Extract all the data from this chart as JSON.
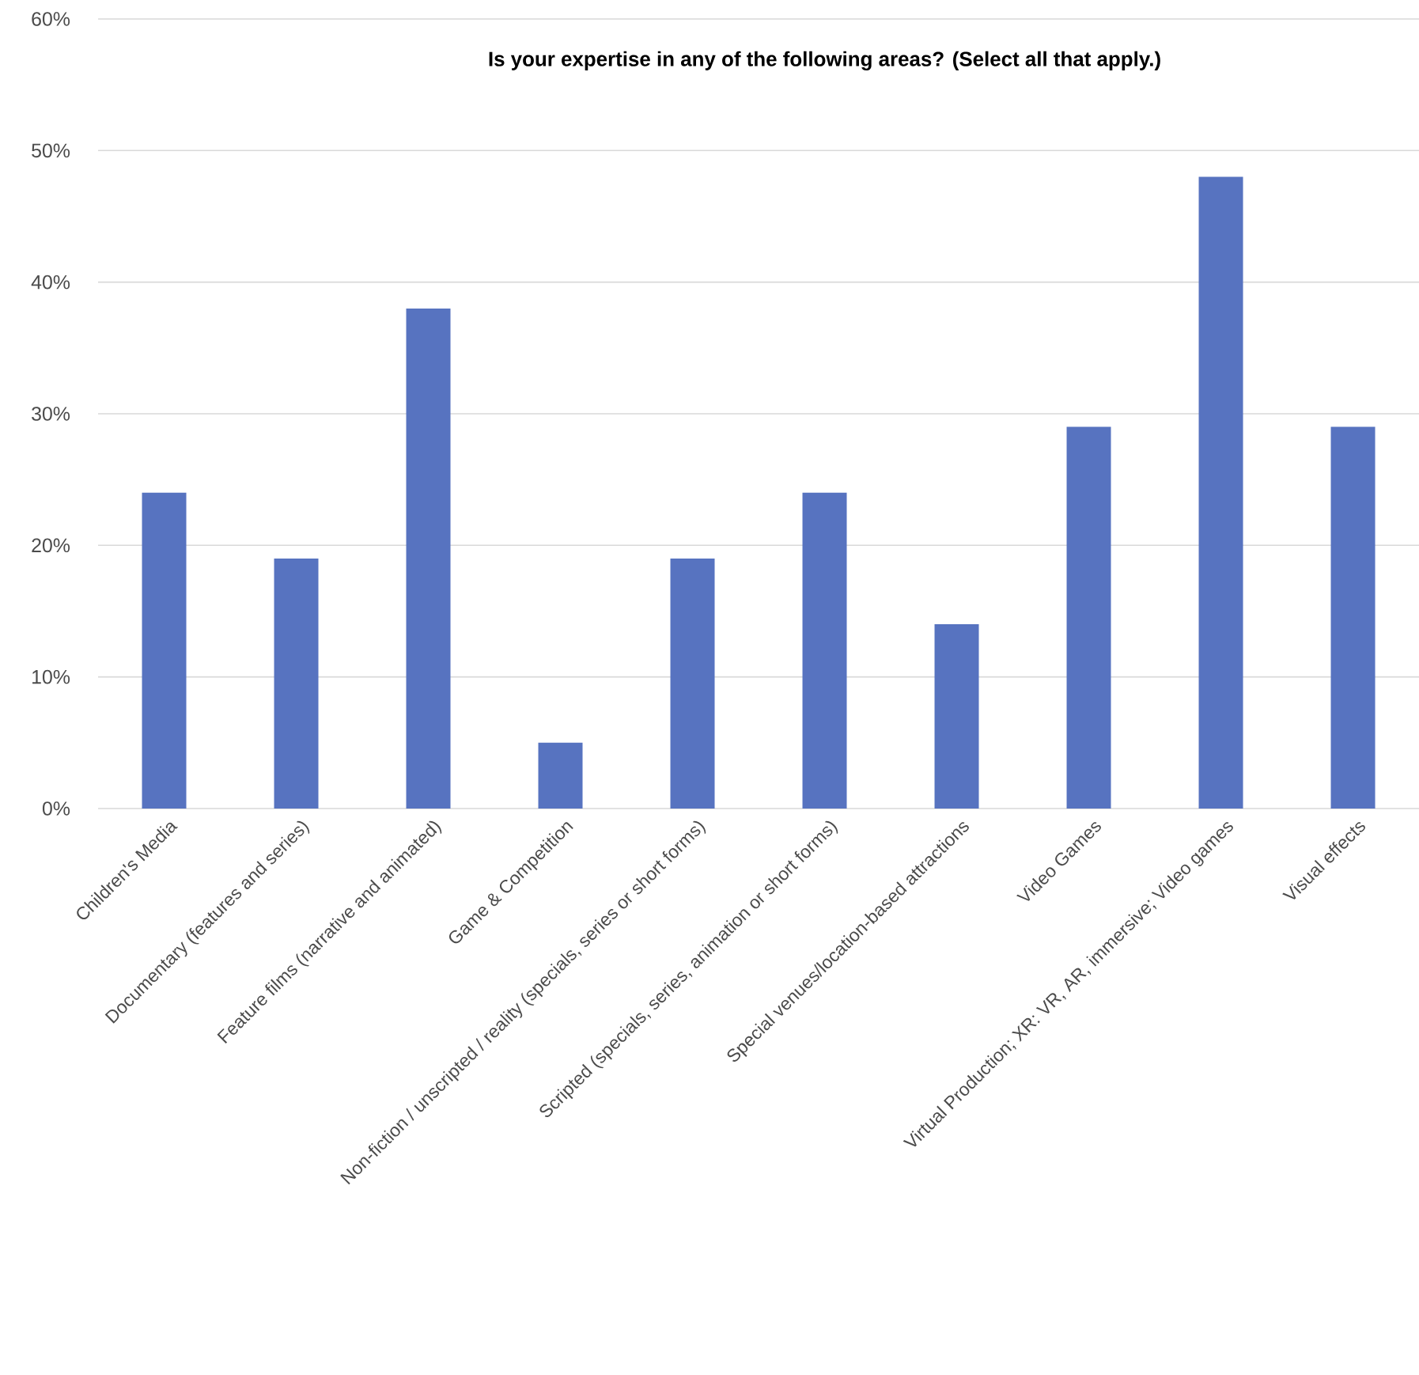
{
  "chart_data": {
    "type": "bar",
    "title": "**Is your expertise in any of the following areas? (Select all that apply.)**",
    "categories": [
      "Children's Media",
      "Documentary (features and series)",
      "Feature films (narrative and animated)",
      "Game & Competition",
      "Non-fiction / unscripted / reality (specials, series or short forms)",
      "Scripted (specials, series, animation or short forms)",
      "Special venues/location-based attractions",
      "Video Games",
      "Virtual Production; XR: VR, AR, immersive; Video games",
      "Visual effects"
    ],
    "values": [
      24,
      19,
      38,
      5,
      19,
      24,
      14,
      29,
      48,
      29
    ],
    "color": "#5773c0",
    "ylim": [
      0,
      60
    ],
    "yticks": [
      {
        "value": 0,
        "label": "0%"
      },
      {
        "value": 10,
        "label": "10%"
      },
      {
        "value": 20,
        "label": "20%"
      },
      {
        "value": 30,
        "label": "30%"
      },
      {
        "value": 40,
        "label": "40%"
      },
      {
        "value": 50,
        "label": "50%"
      },
      {
        "value": 60,
        "label": "60%"
      }
    ],
    "grid": "y"
  }
}
